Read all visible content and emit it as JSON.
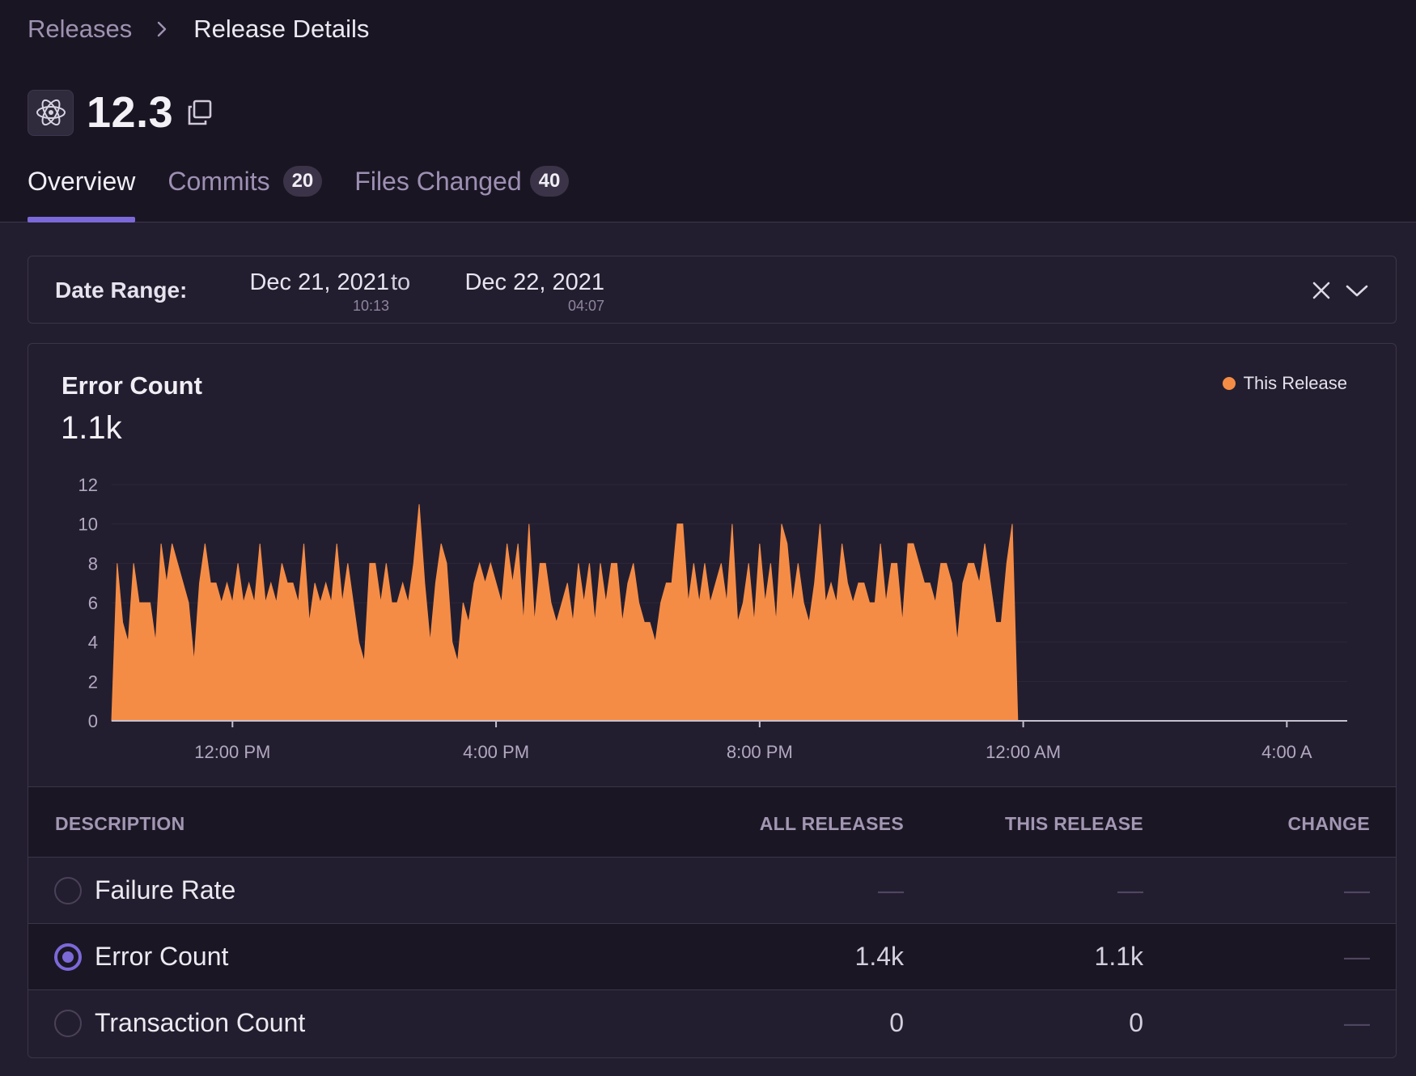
{
  "breadcrumb": {
    "parent": "Releases",
    "current": "Release Details"
  },
  "release": {
    "version": "12.3",
    "project_icon": "electron-atom-icon"
  },
  "tabs": [
    {
      "label": "Overview",
      "active": true
    },
    {
      "label": "Commits",
      "badge": "20"
    },
    {
      "label": "Files Changed",
      "badge": "40"
    }
  ],
  "date_range": {
    "label": "Date Range:",
    "start_date": "Dec 21, 2021",
    "start_time": "10:13",
    "to": "to",
    "end_date": "Dec 22, 2021",
    "end_time": "04:07"
  },
  "chart_panel": {
    "title": "Error Count",
    "total": "1.1k",
    "legend": "This Release"
  },
  "chart_data": {
    "type": "area",
    "title": "Error Count",
    "series": [
      {
        "name": "This Release",
        "color": "#f58c46",
        "values": [
          0,
          8,
          5,
          4,
          8,
          6,
          6,
          6,
          4,
          9,
          7,
          9,
          8,
          7,
          6,
          3,
          7,
          9,
          7,
          7,
          6,
          7,
          6,
          8,
          6,
          7,
          6,
          9,
          6,
          7,
          6,
          8,
          7,
          7,
          6,
          9,
          5,
          7,
          6,
          7,
          6,
          9,
          6,
          8,
          6,
          4,
          3,
          8,
          8,
          6,
          8,
          6,
          6,
          7,
          6,
          8,
          11,
          7,
          4,
          7,
          9,
          8,
          4,
          3,
          6,
          5,
          7,
          8,
          7,
          8,
          7,
          6,
          9,
          7,
          9,
          5,
          10,
          5,
          8,
          8,
          6,
          5,
          6,
          7,
          5,
          8,
          6,
          8,
          5,
          8,
          6,
          8,
          8,
          5,
          7,
          8,
          6,
          5,
          5,
          4,
          6,
          7,
          7,
          10,
          10,
          6,
          8,
          6,
          8,
          6,
          7,
          8,
          6,
          10,
          5,
          6,
          8,
          5,
          9,
          6,
          8,
          5,
          10,
          9,
          6,
          8,
          6,
          5,
          7,
          10,
          6,
          7,
          6,
          9,
          7,
          6,
          7,
          7,
          6,
          6,
          9,
          6,
          8,
          8,
          5,
          9,
          9,
          8,
          7,
          7,
          6,
          8,
          8,
          7,
          4,
          7,
          8,
          8,
          7,
          9,
          7,
          5,
          5,
          8,
          10,
          0,
          0,
          0,
          0,
          0,
          0,
          0,
          0,
          0,
          0,
          0,
          0,
          0,
          0,
          0,
          0,
          0,
          0,
          0,
          0,
          0,
          0,
          0,
          0,
          0,
          0,
          0,
          0,
          0,
          0,
          0,
          0,
          0,
          0,
          0,
          0,
          0,
          0,
          0,
          0,
          0,
          0,
          0,
          0,
          0,
          0,
          0,
          0,
          0,
          0,
          0,
          0,
          0,
          0,
          0,
          0,
          0,
          0,
          0,
          0,
          0
        ]
      }
    ],
    "x_start": "10:10 AM",
    "x_interval_minutes": 5,
    "x_ticks": [
      "12:00 PM",
      "4:00 PM",
      "8:00 PM",
      "12:00 AM",
      "4:00 A"
    ],
    "y_ticks": [
      "0",
      "2",
      "4",
      "6",
      "8",
      "10",
      "12"
    ],
    "ylim": [
      0,
      12
    ],
    "grid": true,
    "legend_position": "top-right"
  },
  "table": {
    "headers": {
      "description": "DESCRIPTION",
      "all": "ALL RELEASES",
      "this": "THIS RELEASE",
      "change": "CHANGE"
    },
    "rows": [
      {
        "label": "Failure Rate",
        "all": "—",
        "this": "—",
        "change": "—",
        "selected": false
      },
      {
        "label": "Error Count",
        "all": "1.4k",
        "this": "1.1k",
        "change": "—",
        "selected": true
      },
      {
        "label": "Transaction Count",
        "all": "0",
        "this": "0",
        "change": "—",
        "selected": false
      }
    ]
  },
  "colors": {
    "accent": "#7c69d8",
    "series": "#f58c46",
    "background": "#231e2f",
    "header": "#1a1523"
  }
}
